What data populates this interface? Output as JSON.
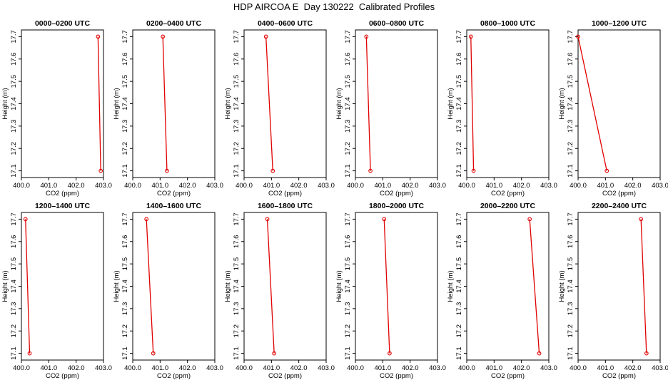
{
  "title": "HDP AIRCOA E  Day 130222  Calibrated Profiles",
  "colors": {
    "series": "#e00000",
    "frame": "#000000"
  },
  "chart_data": [
    {
      "type": "line",
      "title": "0000–0200 UTC",
      "xlabel": "CO2 (ppm)",
      "ylabel": "Height (m)",
      "xlim": [
        400.0,
        403.0
      ],
      "ylim": [
        17.07,
        17.73
      ],
      "xticks": [
        "400.0",
        "401.0",
        "402.0",
        "403.0"
      ],
      "yticks": [
        "17.1",
        "17.2",
        "17.3",
        "17.4",
        "17.5",
        "17.6",
        "17.7"
      ],
      "grid": false,
      "x": [
        402.8,
        402.9
      ],
      "y": [
        17.7,
        17.1
      ]
    },
    {
      "type": "line",
      "title": "0200–0400 UTC",
      "xlabel": "CO2 (ppm)",
      "ylabel": "Height (m)",
      "xlim": [
        400.0,
        403.0
      ],
      "ylim": [
        17.07,
        17.73
      ],
      "xticks": [
        "400.0",
        "401.0",
        "402.0",
        "403.0"
      ],
      "yticks": [
        "17.1",
        "17.2",
        "17.3",
        "17.4",
        "17.5",
        "17.6",
        "17.7"
      ],
      "grid": false,
      "x": [
        401.1,
        401.25
      ],
      "y": [
        17.7,
        17.1
      ]
    },
    {
      "type": "line",
      "title": "0400–0600 UTC",
      "xlabel": "CO2 (ppm)",
      "ylabel": "Height (m)",
      "xlim": [
        400.0,
        403.0
      ],
      "ylim": [
        17.07,
        17.73
      ],
      "xticks": [
        "400.0",
        "401.0",
        "402.0",
        "403.0"
      ],
      "yticks": [
        "17.1",
        "17.2",
        "17.3",
        "17.4",
        "17.5",
        "17.6",
        "17.7"
      ],
      "grid": false,
      "x": [
        400.8,
        401.05
      ],
      "y": [
        17.7,
        17.1
      ]
    },
    {
      "type": "line",
      "title": "0600–0800 UTC",
      "xlabel": "CO2 (ppm)",
      "ylabel": "Height (m)",
      "xlim": [
        400.0,
        403.0
      ],
      "ylim": [
        17.07,
        17.73
      ],
      "xticks": [
        "400.0",
        "401.0",
        "402.0",
        "403.0"
      ],
      "yticks": [
        "17.1",
        "17.2",
        "17.3",
        "17.4",
        "17.5",
        "17.6",
        "17.7"
      ],
      "grid": false,
      "x": [
        400.4,
        400.55
      ],
      "y": [
        17.7,
        17.1
      ]
    },
    {
      "type": "line",
      "title": "0800–1000 UTC",
      "xlabel": "CO2 (ppm)",
      "ylabel": "Height (m)",
      "xlim": [
        400.0,
        403.0
      ],
      "ylim": [
        17.07,
        17.73
      ],
      "xticks": [
        "400.0",
        "401.0",
        "402.0",
        "403.0"
      ],
      "yticks": [
        "17.1",
        "17.2",
        "17.3",
        "17.4",
        "17.5",
        "17.6",
        "17.7"
      ],
      "grid": false,
      "x": [
        400.15,
        400.25
      ],
      "y": [
        17.7,
        17.1
      ]
    },
    {
      "type": "line",
      "title": "1000–1200 UTC",
      "xlabel": "CO2 (ppm)",
      "ylabel": "Height (m)",
      "xlim": [
        400.0,
        403.0
      ],
      "ylim": [
        17.07,
        17.73
      ],
      "xticks": [
        "400.0",
        "401.0",
        "402.0",
        "403.0"
      ],
      "yticks": [
        "17.1",
        "17.2",
        "17.3",
        "17.4",
        "17.5",
        "17.6",
        "17.7"
      ],
      "grid": false,
      "x": [
        400.0,
        401.05
      ],
      "y": [
        17.7,
        17.1
      ]
    },
    {
      "type": "line",
      "title": "1200–1400 UTC",
      "xlabel": "CO2 (ppm)",
      "ylabel": "Height (m)",
      "xlim": [
        400.0,
        403.0
      ],
      "ylim": [
        17.07,
        17.73
      ],
      "xticks": [
        "400.0",
        "401.0",
        "402.0",
        "403.0"
      ],
      "yticks": [
        "17.1",
        "17.2",
        "17.3",
        "17.4",
        "17.5",
        "17.6",
        "17.7"
      ],
      "grid": false,
      "x": [
        400.15,
        400.3
      ],
      "y": [
        17.7,
        17.1
      ]
    },
    {
      "type": "line",
      "title": "1400–1600 UTC",
      "xlabel": "CO2 (ppm)",
      "ylabel": "Height (m)",
      "xlim": [
        400.0,
        403.0
      ],
      "ylim": [
        17.07,
        17.73
      ],
      "xticks": [
        "400.0",
        "401.0",
        "402.0",
        "403.0"
      ],
      "yticks": [
        "17.1",
        "17.2",
        "17.3",
        "17.4",
        "17.5",
        "17.6",
        "17.7"
      ],
      "grid": false,
      "x": [
        400.5,
        400.75
      ],
      "y": [
        17.7,
        17.1
      ]
    },
    {
      "type": "line",
      "title": "1600–1800 UTC",
      "xlabel": "CO2 (ppm)",
      "ylabel": "Height (m)",
      "xlim": [
        400.0,
        403.0
      ],
      "ylim": [
        17.07,
        17.73
      ],
      "xticks": [
        "400.0",
        "401.0",
        "402.0",
        "403.0"
      ],
      "yticks": [
        "17.1",
        "17.2",
        "17.3",
        "17.4",
        "17.5",
        "17.6",
        "17.7"
      ],
      "grid": false,
      "x": [
        400.85,
        401.1
      ],
      "y": [
        17.7,
        17.1
      ]
    },
    {
      "type": "line",
      "title": "1800–2000 UTC",
      "xlabel": "CO2 (ppm)",
      "ylabel": "Height (m)",
      "xlim": [
        400.0,
        403.0
      ],
      "ylim": [
        17.07,
        17.73
      ],
      "xticks": [
        "400.0",
        "401.0",
        "402.0",
        "403.0"
      ],
      "yticks": [
        "17.1",
        "17.2",
        "17.3",
        "17.4",
        "17.5",
        "17.6",
        "17.7"
      ],
      "grid": false,
      "x": [
        401.05,
        401.25
      ],
      "y": [
        17.7,
        17.1
      ]
    },
    {
      "type": "line",
      "title": "2000–2200 UTC",
      "xlabel": "CO2 (ppm)",
      "ylabel": "Height (m)",
      "xlim": [
        400.0,
        403.0
      ],
      "ylim": [
        17.07,
        17.73
      ],
      "xticks": [
        "400.0",
        "401.0",
        "402.0",
        "403.0"
      ],
      "yticks": [
        "17.1",
        "17.2",
        "17.3",
        "17.4",
        "17.5",
        "17.6",
        "17.7"
      ],
      "grid": false,
      "x": [
        402.3,
        402.65
      ],
      "y": [
        17.7,
        17.1
      ]
    },
    {
      "type": "line",
      "title": "2200–2400 UTC",
      "xlabel": "CO2 (ppm)",
      "ylabel": "Height (m)",
      "xlim": [
        400.0,
        403.0
      ],
      "ylim": [
        17.07,
        17.73
      ],
      "xticks": [
        "400.0",
        "401.0",
        "402.0",
        "403.0"
      ],
      "yticks": [
        "17.1",
        "17.2",
        "17.3",
        "17.4",
        "17.5",
        "17.6",
        "17.7"
      ],
      "grid": false,
      "x": [
        402.3,
        402.5
      ],
      "y": [
        17.7,
        17.1
      ]
    }
  ]
}
